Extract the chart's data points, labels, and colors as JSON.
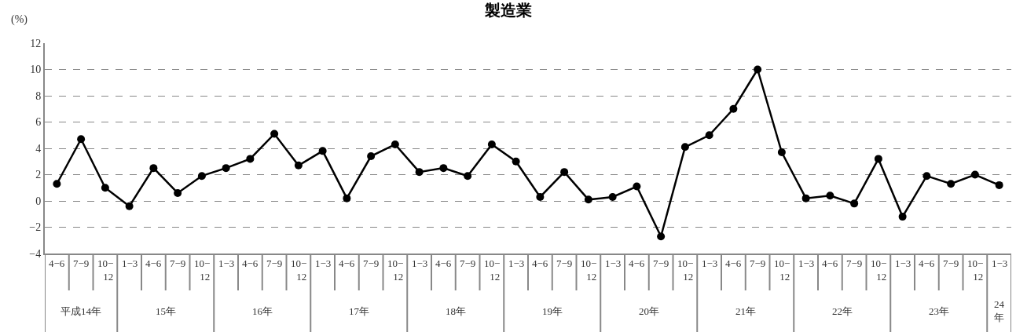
{
  "chart_data": {
    "type": "line",
    "title": "製造業",
    "ylabel": "(%)",
    "categories": [
      "4−6",
      "7−9",
      "10−12",
      "1−3",
      "4−6",
      "7−9",
      "10−12",
      "1−3",
      "4−6",
      "7−9",
      "10−12",
      "1−3",
      "4−6",
      "7−9",
      "10−12",
      "1−3",
      "4−6",
      "7−9",
      "10−12",
      "1−3",
      "4−6",
      "7−9",
      "10−12",
      "1−3",
      "4−6",
      "7−9",
      "10−12",
      "1−3",
      "4−6",
      "7−9",
      "10−12",
      "1−3",
      "4−6",
      "7−9",
      "10−12",
      "1−3",
      "4−6",
      "7−9",
      "10−12",
      "1−3"
    ],
    "series": [
      {
        "color": "#000000",
        "values": [
          1.3,
          4.7,
          1.0,
          -0.4,
          2.5,
          0.6,
          1.9,
          2.5,
          3.2,
          5.1,
          2.7,
          3.8,
          0.2,
          3.4,
          4.3,
          2.2,
          2.5,
          1.9,
          4.3,
          3.0,
          0.3,
          2.2,
          0.1,
          0.3,
          1.1,
          -2.7,
          4.1,
          5.0,
          7.0,
          10.0,
          3.7,
          0.2,
          0.4,
          -0.2,
          3.2,
          -1.2,
          1.9,
          1.3,
          2.0,
          1.2
        ]
      }
    ],
    "annotations": [
      "平成14年",
      "15年",
      "16年",
      "17年",
      "18年",
      "19年",
      "20年",
      "21年",
      "22年",
      "23年",
      "24年"
    ],
    "ylim": [
      -4,
      12
    ],
    "yticks": [
      -4,
      -2,
      0,
      2,
      4,
      6,
      8,
      10,
      12
    ],
    "grid": "y",
    "legend": false,
    "marker": "circle",
    "line_style": "solid"
  }
}
